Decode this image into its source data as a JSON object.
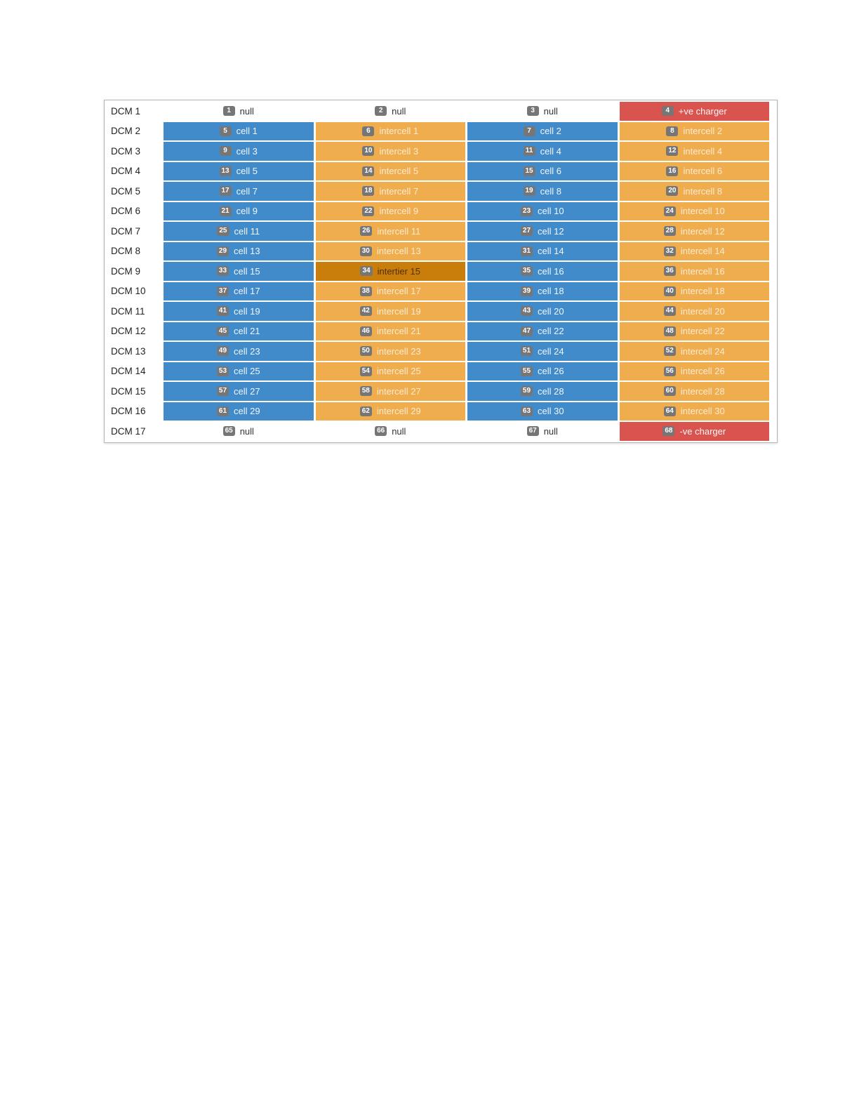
{
  "colors": {
    "null": "#ffffff",
    "cell": "#428bca",
    "intercell": "#f0ad4e",
    "intertier": "#c97e0c",
    "charger": "#d9534f",
    "badge": "#767676"
  },
  "panel": {
    "rows": [
      {
        "label": "DCM 1",
        "cells": [
          {
            "number": "1",
            "label": "null",
            "type": "null"
          },
          {
            "number": "2",
            "label": "null",
            "type": "null"
          },
          {
            "number": "3",
            "label": "null",
            "type": "null"
          },
          {
            "number": "4",
            "label": "+ve charger",
            "type": "charger"
          }
        ]
      },
      {
        "label": "DCM 2",
        "cells": [
          {
            "number": "5",
            "label": "cell 1",
            "type": "cell"
          },
          {
            "number": "6",
            "label": "intercell 1",
            "type": "intercell"
          },
          {
            "number": "7",
            "label": "cell 2",
            "type": "cell"
          },
          {
            "number": "8",
            "label": "intercell 2",
            "type": "intercell"
          }
        ]
      },
      {
        "label": "DCM 3",
        "cells": [
          {
            "number": "9",
            "label": "cell 3",
            "type": "cell"
          },
          {
            "number": "10",
            "label": "intercell 3",
            "type": "intercell"
          },
          {
            "number": "11",
            "label": "cell 4",
            "type": "cell"
          },
          {
            "number": "12",
            "label": "intercell 4",
            "type": "intercell"
          }
        ]
      },
      {
        "label": "DCM 4",
        "cells": [
          {
            "number": "13",
            "label": "cell 5",
            "type": "cell"
          },
          {
            "number": "14",
            "label": "intercell 5",
            "type": "intercell"
          },
          {
            "number": "15",
            "label": "cell 6",
            "type": "cell"
          },
          {
            "number": "16",
            "label": "intercell 6",
            "type": "intercell"
          }
        ]
      },
      {
        "label": "DCM 5",
        "cells": [
          {
            "number": "17",
            "label": "cell 7",
            "type": "cell"
          },
          {
            "number": "18",
            "label": "intercell 7",
            "type": "intercell"
          },
          {
            "number": "19",
            "label": "cell 8",
            "type": "cell"
          },
          {
            "number": "20",
            "label": "intercell 8",
            "type": "intercell"
          }
        ]
      },
      {
        "label": "DCM 6",
        "cells": [
          {
            "number": "21",
            "label": "cell 9",
            "type": "cell"
          },
          {
            "number": "22",
            "label": "intercell 9",
            "type": "intercell"
          },
          {
            "number": "23",
            "label": "cell 10",
            "type": "cell"
          },
          {
            "number": "24",
            "label": "intercell 10",
            "type": "intercell"
          }
        ]
      },
      {
        "label": "DCM 7",
        "cells": [
          {
            "number": "25",
            "label": "cell 11",
            "type": "cell"
          },
          {
            "number": "26",
            "label": "intercell 11",
            "type": "intercell"
          },
          {
            "number": "27",
            "label": "cell 12",
            "type": "cell"
          },
          {
            "number": "28",
            "label": "intercell 12",
            "type": "intercell"
          }
        ]
      },
      {
        "label": "DCM 8",
        "cells": [
          {
            "number": "29",
            "label": "cell 13",
            "type": "cell"
          },
          {
            "number": "30",
            "label": "intercell 13",
            "type": "intercell"
          },
          {
            "number": "31",
            "label": "cell 14",
            "type": "cell"
          },
          {
            "number": "32",
            "label": "intercell 14",
            "type": "intercell"
          }
        ]
      },
      {
        "label": "DCM 9",
        "cells": [
          {
            "number": "33",
            "label": "cell 15",
            "type": "cell"
          },
          {
            "number": "34",
            "label": "intertier 15",
            "type": "intertier"
          },
          {
            "number": "35",
            "label": "cell 16",
            "type": "cell"
          },
          {
            "number": "36",
            "label": "intercell 16",
            "type": "intercell"
          }
        ]
      },
      {
        "label": "DCM 10",
        "cells": [
          {
            "number": "37",
            "label": "cell 17",
            "type": "cell"
          },
          {
            "number": "38",
            "label": "intercell 17",
            "type": "intercell"
          },
          {
            "number": "39",
            "label": "cell 18",
            "type": "cell"
          },
          {
            "number": "40",
            "label": "intercell 18",
            "type": "intercell"
          }
        ]
      },
      {
        "label": "DCM 11",
        "cells": [
          {
            "number": "41",
            "label": "cell 19",
            "type": "cell"
          },
          {
            "number": "42",
            "label": "intercell 19",
            "type": "intercell"
          },
          {
            "number": "43",
            "label": "cell 20",
            "type": "cell"
          },
          {
            "number": "44",
            "label": "intercell 20",
            "type": "intercell"
          }
        ]
      },
      {
        "label": "DCM 12",
        "cells": [
          {
            "number": "45",
            "label": "cell 21",
            "type": "cell"
          },
          {
            "number": "46",
            "label": "intercell 21",
            "type": "intercell"
          },
          {
            "number": "47",
            "label": "cell 22",
            "type": "cell"
          },
          {
            "number": "48",
            "label": "intercell 22",
            "type": "intercell"
          }
        ]
      },
      {
        "label": "DCM 13",
        "cells": [
          {
            "number": "49",
            "label": "cell 23",
            "type": "cell"
          },
          {
            "number": "50",
            "label": "intercell 23",
            "type": "intercell"
          },
          {
            "number": "51",
            "label": "cell 24",
            "type": "cell"
          },
          {
            "number": "52",
            "label": "intercell 24",
            "type": "intercell"
          }
        ]
      },
      {
        "label": "DCM 14",
        "cells": [
          {
            "number": "53",
            "label": "cell 25",
            "type": "cell"
          },
          {
            "number": "54",
            "label": "intercell 25",
            "type": "intercell"
          },
          {
            "number": "55",
            "label": "cell 26",
            "type": "cell"
          },
          {
            "number": "56",
            "label": "intercell 26",
            "type": "intercell"
          }
        ]
      },
      {
        "label": "DCM 15",
        "cells": [
          {
            "number": "57",
            "label": "cell 27",
            "type": "cell"
          },
          {
            "number": "58",
            "label": "intercell 27",
            "type": "intercell"
          },
          {
            "number": "59",
            "label": "cell 28",
            "type": "cell"
          },
          {
            "number": "60",
            "label": "intercell 28",
            "type": "intercell"
          }
        ]
      },
      {
        "label": "DCM 16",
        "cells": [
          {
            "number": "61",
            "label": "cell 29",
            "type": "cell"
          },
          {
            "number": "62",
            "label": "intercell 29",
            "type": "intercell"
          },
          {
            "number": "63",
            "label": "cell 30",
            "type": "cell"
          },
          {
            "number": "64",
            "label": "intercell 30",
            "type": "intercell"
          }
        ]
      },
      {
        "label": "DCM 17",
        "cells": [
          {
            "number": "65",
            "label": "null",
            "type": "null"
          },
          {
            "number": "66",
            "label": "null",
            "type": "null"
          },
          {
            "number": "67",
            "label": "null",
            "type": "null"
          },
          {
            "number": "68",
            "label": "-ve charger",
            "type": "charger"
          }
        ]
      }
    ]
  }
}
